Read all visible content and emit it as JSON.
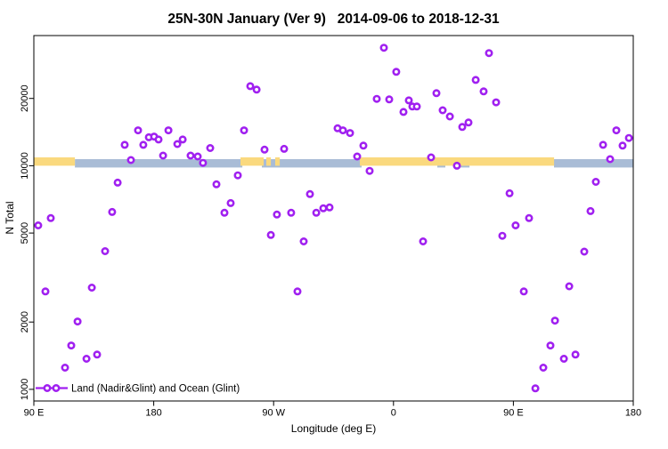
{
  "chart_data": {
    "type": "scatter",
    "title": "25N-30N January (Ver 9)   2014-09-06 to 2018-12-31",
    "xlabel": "Longitude (deg E)",
    "ylabel": "N Total",
    "x_range_deg": [
      90,
      540
    ],
    "x_ticks": [
      {
        "deg": 90,
        "label": "90 E"
      },
      {
        "deg": 180,
        "label": "180"
      },
      {
        "deg": 270,
        "label": "90 W"
      },
      {
        "deg": 360,
        "label": "0"
      },
      {
        "deg": 450,
        "label": "90 E"
      },
      {
        "deg": 540,
        "label": "180"
      }
    ],
    "y_scale": "log",
    "y_range": [
      887,
      38200
    ],
    "y_ticks": [
      {
        "value": 1000,
        "label": "1000"
      },
      {
        "value": 2000,
        "label": "2000"
      },
      {
        "value": 5000,
        "label": "5000"
      },
      {
        "value": 10000,
        "label": "10000"
      },
      {
        "value": 20000,
        "label": "20000"
      }
    ],
    "grid": false,
    "marker": {
      "shape": "open-circle",
      "color": "#A020F0",
      "fill": "#ffffff"
    },
    "legend": {
      "label": "Land (Nadir&Glint) and Ocean (Glint)",
      "position": "bottom-left"
    },
    "bands": [
      {
        "name": "ocean",
        "color": "#A9BCD6",
        "n_top": 10700,
        "n_bottom": 9820,
        "segments_deg": [
          [
            120.8,
            246.5
          ],
          [
            261.2,
            336.1
          ],
          [
            392.9,
            398.9
          ],
          [
            407.6,
            417.0
          ],
          [
            480.5,
            540.0
          ]
        ]
      },
      {
        "name": "land",
        "color": "#FAD97E",
        "n_top": 10900,
        "n_bottom": 10000,
        "segments_deg": [
          [
            90.0,
            120.8
          ],
          [
            245.1,
            262.5
          ],
          [
            264.5,
            267.9
          ],
          [
            271.2,
            274.6
          ],
          [
            334.7,
            480.5
          ]
        ]
      }
    ],
    "points": [
      {
        "lon": 168.2,
        "n": 14400
      },
      {
        "lon": 158.2,
        "n": 12400
      },
      {
        "lon": 172.2,
        "n": 12400
      },
      {
        "lon": 176.3,
        "n": 13400
      },
      {
        "lon": 180.3,
        "n": 13500
      },
      {
        "lon": 183.6,
        "n": 13100
      },
      {
        "lon": 191.0,
        "n": 14400
      },
      {
        "lon": 197.7,
        "n": 12500
      },
      {
        "lon": 201.7,
        "n": 13100
      },
      {
        "lon": 187.0,
        "n": 11100
      },
      {
        "lon": 162.9,
        "n": 10600
      },
      {
        "lon": 152.9,
        "n": 8400
      },
      {
        "lon": 148.8,
        "n": 6210
      },
      {
        "lon": 102.7,
        "n": 5830
      },
      {
        "lon": 93.3,
        "n": 5410
      },
      {
        "lon": 143.5,
        "n": 4150
      },
      {
        "lon": 133.5,
        "n": 2850
      },
      {
        "lon": 98.7,
        "n": 2740
      },
      {
        "lon": 122.8,
        "n": 2010
      },
      {
        "lon": 118.1,
        "n": 1570
      },
      {
        "lon": 137.5,
        "n": 1430
      },
      {
        "lon": 129.5,
        "n": 1370
      },
      {
        "lon": 113.4,
        "n": 1250
      },
      {
        "lon": 252.5,
        "n": 22700
      },
      {
        "lon": 257.2,
        "n": 21900
      },
      {
        "lon": 247.8,
        "n": 14400
      },
      {
        "lon": 207.7,
        "n": 11100
      },
      {
        "lon": 213.0,
        "n": 11000
      },
      {
        "lon": 217.0,
        "n": 10300
      },
      {
        "lon": 222.4,
        "n": 12000
      },
      {
        "lon": 263.2,
        "n": 11800
      },
      {
        "lon": 277.9,
        "n": 11900
      },
      {
        "lon": 243.1,
        "n": 9060
      },
      {
        "lon": 227.1,
        "n": 8260
      },
      {
        "lon": 237.8,
        "n": 6810
      },
      {
        "lon": 233.1,
        "n": 6160
      },
      {
        "lon": 272.5,
        "n": 6050
      },
      {
        "lon": 283.2,
        "n": 6160
      },
      {
        "lon": 297.3,
        "n": 7470
      },
      {
        "lon": 302.0,
        "n": 6160
      },
      {
        "lon": 307.3,
        "n": 6450
      },
      {
        "lon": 312.0,
        "n": 6510
      },
      {
        "lon": 267.9,
        "n": 4900
      },
      {
        "lon": 292.6,
        "n": 4590
      },
      {
        "lon": 287.9,
        "n": 2740
      },
      {
        "lon": 352.8,
        "n": 33700
      },
      {
        "lon": 362.1,
        "n": 26300
      },
      {
        "lon": 431.7,
        "n": 31900
      },
      {
        "lon": 421.7,
        "n": 24200
      },
      {
        "lon": 427.7,
        "n": 21500
      },
      {
        "lon": 347.4,
        "n": 19900
      },
      {
        "lon": 356.8,
        "n": 19800
      },
      {
        "lon": 392.2,
        "n": 21100
      },
      {
        "lon": 371.5,
        "n": 19600
      },
      {
        "lon": 374.2,
        "n": 18400
      },
      {
        "lon": 377.5,
        "n": 18400
      },
      {
        "lon": 367.5,
        "n": 17400
      },
      {
        "lon": 396.9,
        "n": 17700
      },
      {
        "lon": 402.3,
        "n": 16600
      },
      {
        "lon": 411.6,
        "n": 14900
      },
      {
        "lon": 416.3,
        "n": 15600
      },
      {
        "lon": 437.0,
        "n": 19200
      },
      {
        "lon": 318.0,
        "n": 14700
      },
      {
        "lon": 322.0,
        "n": 14400
      },
      {
        "lon": 327.4,
        "n": 14000
      },
      {
        "lon": 337.4,
        "n": 12300
      },
      {
        "lon": 332.7,
        "n": 11000
      },
      {
        "lon": 342.1,
        "n": 9480
      },
      {
        "lon": 388.2,
        "n": 10900
      },
      {
        "lon": 407.6,
        "n": 10000
      },
      {
        "lon": 382.2,
        "n": 4590
      },
      {
        "lon": 527.3,
        "n": 14400
      },
      {
        "lon": 536.7,
        "n": 13300
      },
      {
        "lon": 517.3,
        "n": 12400
      },
      {
        "lon": 532.0,
        "n": 12300
      },
      {
        "lon": 522.6,
        "n": 10700
      },
      {
        "lon": 511.9,
        "n": 8470
      },
      {
        "lon": 447.1,
        "n": 7530
      },
      {
        "lon": 461.8,
        "n": 5830
      },
      {
        "lon": 451.7,
        "n": 5410
      },
      {
        "lon": 441.7,
        "n": 4860
      },
      {
        "lon": 507.9,
        "n": 6270
      },
      {
        "lon": 503.2,
        "n": 4130
      },
      {
        "lon": 457.8,
        "n": 2740
      },
      {
        "lon": 491.9,
        "n": 2890
      },
      {
        "lon": 481.2,
        "n": 2030
      },
      {
        "lon": 477.8,
        "n": 1570
      },
      {
        "lon": 496.6,
        "n": 1430
      },
      {
        "lon": 487.9,
        "n": 1370
      },
      {
        "lon": 472.5,
        "n": 1250
      },
      {
        "lon": 466.5,
        "n": 1010
      }
    ]
  }
}
